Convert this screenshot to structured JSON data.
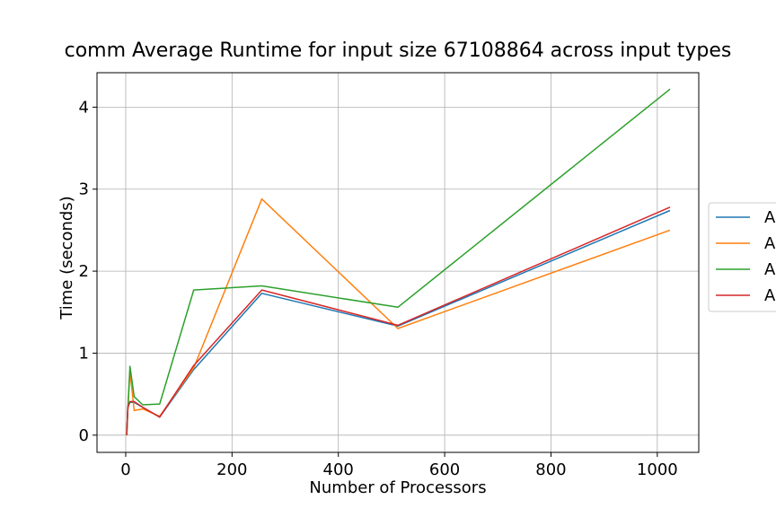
{
  "chart_data": {
    "type": "line",
    "title": "comm Average Runtime for input size 67108864 across input types",
    "xlabel": "Number of Processors",
    "ylabel": "Time (seconds)",
    "xlim": [
      -54,
      1078
    ],
    "ylim": [
      -0.21,
      4.42
    ],
    "xticks": [
      0,
      200,
      400,
      600,
      800,
      1000
    ],
    "yticks": [
      0,
      1,
      2,
      3,
      4
    ],
    "grid": true,
    "legend_position": "right",
    "x": [
      2,
      4,
      8,
      16,
      32,
      64,
      128,
      256,
      512,
      1024
    ],
    "series": [
      {
        "name": "A",
        "color": "#1f77b4",
        "values": [
          0.0,
          0.35,
          0.4,
          0.4,
          0.34,
          0.22,
          0.8,
          1.73,
          1.33,
          2.74
        ]
      },
      {
        "name": "A",
        "color": "#ff7f0e",
        "values": [
          0.0,
          0.3,
          0.78,
          0.3,
          0.32,
          0.23,
          0.82,
          2.88,
          1.3,
          2.5
        ]
      },
      {
        "name": "A",
        "color": "#2ca02c",
        "values": [
          0.0,
          0.31,
          0.84,
          0.47,
          0.37,
          0.38,
          1.77,
          1.82,
          1.56,
          4.22
        ]
      },
      {
        "name": "A",
        "color": "#d62728",
        "values": [
          0.0,
          0.33,
          0.41,
          0.41,
          0.34,
          0.22,
          0.85,
          1.77,
          1.34,
          2.78
        ]
      }
    ]
  }
}
